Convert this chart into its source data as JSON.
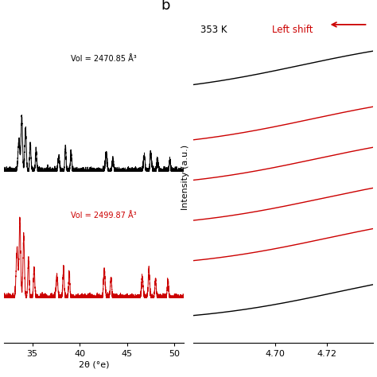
{
  "left_panel": {
    "xlabel": "2θ (°e)",
    "xlim": [
      32,
      51
    ],
    "x_ticks": [
      35,
      40,
      45,
      50
    ],
    "black_label": "Vol = 2470.85 Å³",
    "red_label": "Vol = 2499.87 Å³",
    "black_color": "#000000",
    "red_color": "#cc0000"
  },
  "right_panel": {
    "ylabel": "Intensity (a.u.)",
    "xlim": [
      4.668,
      4.738
    ],
    "x_ticks": [
      4.7,
      4.72
    ],
    "label_353k": "353 K",
    "label_shift": "Left shift",
    "arrow_color": "#cc0000",
    "black_color": "#000000",
    "red_color": "#cc0000",
    "panel_label": "b",
    "curve_colors": [
      "black",
      "red",
      "red",
      "red",
      "red",
      "black"
    ],
    "x0_values": [
      4.71,
      4.714,
      4.716,
      4.718,
      4.72,
      4.724
    ],
    "offsets": [
      0.82,
      0.63,
      0.49,
      0.35,
      0.21,
      0.02
    ],
    "amplitude": 0.22,
    "steepness": 35
  },
  "background_color": "#ffffff"
}
